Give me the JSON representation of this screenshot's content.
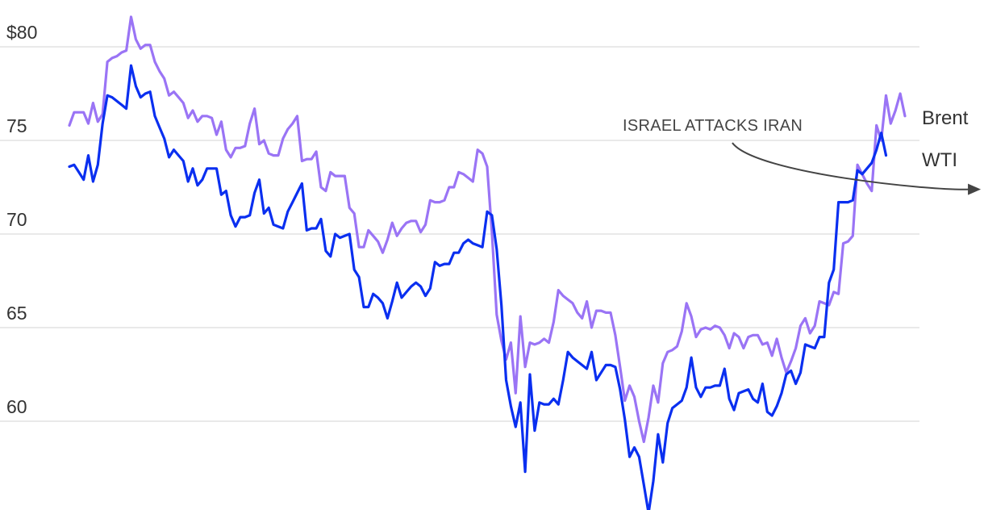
{
  "chart_data": {
    "type": "line",
    "title": "",
    "xlabel": "",
    "ylabel": "",
    "ylim": [
      55.5,
      81.5
    ],
    "y_ticks": [
      {
        "value": 80,
        "label": "$80"
      },
      {
        "value": 75,
        "label": "75"
      },
      {
        "value": 70,
        "label": "70"
      },
      {
        "value": 65,
        "label": "65"
      },
      {
        "value": 60,
        "label": "60"
      }
    ],
    "grid": true,
    "legend": "end-of-line labels on right",
    "annotation": {
      "text": "ISRAEL ATTACKS IRAN",
      "point_index": 193,
      "point_value": 72.3
    },
    "series": [
      {
        "name": "Brent",
        "color": "#9a74f5",
        "values": [
          75.8,
          76.5,
          76.5,
          76.5,
          75.9,
          77.0,
          76.0,
          76.4,
          79.2,
          79.4,
          79.5,
          79.7,
          79.8,
          81.6,
          80.4,
          79.9,
          80.1,
          80.1,
          79.2,
          78.7,
          78.3,
          77.4,
          77.6,
          77.3,
          77.0,
          76.2,
          76.6,
          76.0,
          76.3,
          76.3,
          76.2,
          75.3,
          76.0,
          74.5,
          74.1,
          74.6,
          74.6,
          74.7,
          75.9,
          76.7,
          74.8,
          75.0,
          74.3,
          74.2,
          74.2,
          75.1,
          75.6,
          75.9,
          76.3,
          73.9,
          74.0,
          74.0,
          74.4,
          72.5,
          72.3,
          73.3,
          73.1,
          73.1,
          73.1,
          71.4,
          71.1,
          69.3,
          69.3,
          70.2,
          69.9,
          69.6,
          69.0,
          69.7,
          70.6,
          69.9,
          70.3,
          70.6,
          70.7,
          70.7,
          70.1,
          70.5,
          71.8,
          71.7,
          71.7,
          71.8,
          72.5,
          72.5,
          73.3,
          73.2,
          73.0,
          72.8,
          74.5,
          74.3,
          73.6,
          70.1,
          65.7,
          64.3,
          63.3,
          64.2,
          61.5,
          65.6,
          62.9,
          64.2,
          64.1,
          64.2,
          64.4,
          64.2,
          65.3,
          67.0,
          66.7,
          66.5,
          66.3,
          65.8,
          65.5,
          66.4,
          65.0,
          65.9,
          65.9,
          65.8,
          65.8,
          64.6,
          62.9,
          61.1,
          61.9,
          61.3,
          60.0,
          58.9,
          60.2,
          61.9,
          61.0,
          63.1,
          63.7,
          63.8,
          64.0,
          64.8,
          66.3,
          65.6,
          64.5,
          64.9,
          65.0,
          64.9,
          65.1,
          65.0,
          64.6,
          63.9,
          64.7,
          64.5,
          63.9,
          64.5,
          64.6,
          64.6,
          64.1,
          64.2,
          63.5,
          64.4,
          63.4,
          62.6,
          63.2,
          63.9,
          65.1,
          65.5,
          64.7,
          65.1,
          66.4,
          66.3,
          66.2,
          66.9,
          66.8,
          69.5,
          69.6,
          69.9,
          73.7,
          73.2,
          72.7,
          72.3,
          75.8,
          75.0,
          77.4,
          75.9,
          76.6,
          77.5,
          76.3
        ],
        "label": "Brent"
      },
      {
        "name": "WTI",
        "color": "#0a2ff0",
        "values": [
          73.6,
          73.7,
          73.3,
          72.9,
          74.2,
          72.8,
          73.7,
          75.9,
          77.4,
          77.3,
          77.1,
          76.9,
          76.7,
          79.0,
          77.9,
          77.3,
          77.5,
          77.6,
          76.3,
          75.7,
          75.1,
          74.1,
          74.5,
          74.2,
          73.9,
          72.8,
          73.5,
          72.6,
          72.9,
          73.5,
          73.5,
          73.5,
          72.1,
          72.3,
          71.0,
          70.4,
          70.9,
          70.9,
          71.0,
          72.2,
          72.9,
          71.1,
          71.4,
          70.5,
          70.4,
          70.3,
          71.2,
          71.7,
          72.2,
          72.7,
          70.2,
          70.3,
          70.3,
          70.8,
          69.1,
          68.8,
          70.0,
          69.8,
          69.9,
          70.0,
          68.1,
          67.7,
          66.1,
          66.1,
          66.8,
          66.6,
          66.3,
          65.5,
          66.4,
          67.4,
          66.6,
          66.9,
          67.2,
          67.4,
          67.2,
          66.7,
          67.1,
          68.5,
          68.3,
          68.4,
          68.4,
          69.0,
          69.0,
          69.5,
          69.7,
          69.5,
          69.4,
          69.3,
          71.2,
          71.0,
          69.2,
          66.2,
          62.2,
          60.8,
          59.7,
          61.0,
          57.3,
          62.5,
          59.5,
          61.0,
          60.9,
          60.9,
          61.2,
          60.9,
          62.2,
          63.7,
          63.4,
          63.2,
          63.0,
          62.8,
          63.7,
          62.2,
          62.6,
          63.0,
          63.0,
          62.9,
          61.7,
          60.1,
          58.1,
          58.6,
          58.1,
          56.6,
          55.1,
          56.8,
          59.3,
          57.8,
          59.9,
          60.7,
          60.9,
          61.1,
          61.8,
          63.4,
          61.8,
          61.3,
          61.8,
          61.8,
          61.9,
          61.9,
          62.8,
          61.2,
          60.6,
          61.5,
          61.6,
          61.7,
          61.2,
          61.0,
          62.0,
          60.5,
          60.3,
          60.8,
          61.5,
          62.5,
          62.7,
          62.0,
          62.6,
          64.1,
          64.0,
          63.9,
          64.5,
          64.5,
          67.4,
          68.1,
          71.7,
          71.7,
          71.7,
          71.8,
          73.4,
          73.2,
          73.5,
          73.8,
          74.5,
          75.4,
          74.2
        ],
        "label": "WTI"
      }
    ]
  }
}
